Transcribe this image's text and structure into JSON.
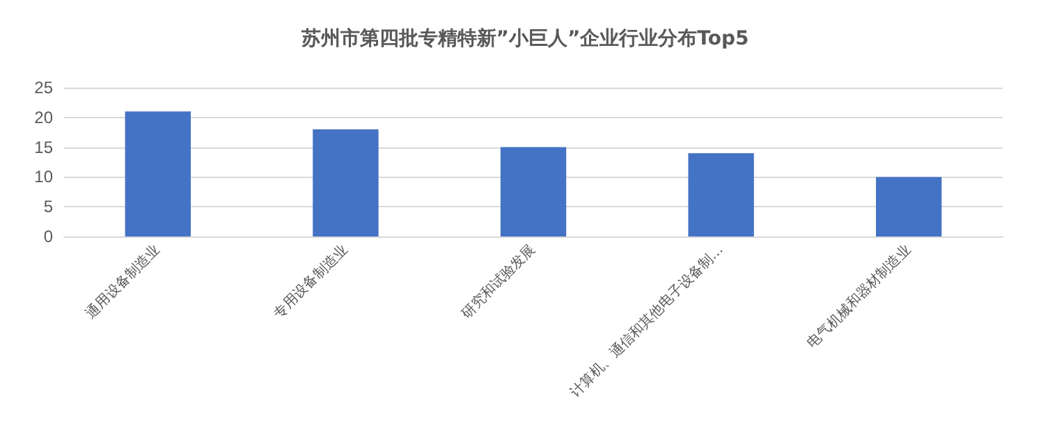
{
  "chart_data": {
    "type": "bar",
    "title": "苏州市第四批专精特新”小巨人”企业行业分布Top5",
    "categories": [
      "通用设备制造业",
      "专用设备制造业",
      "研究和试验发展",
      "计算机、通信和其他电子设备制…",
      "电气机械和器材制造业"
    ],
    "values": [
      21,
      18,
      15,
      14,
      10
    ],
    "color": "#4472c4",
    "ylim": [
      0,
      25
    ],
    "yticks": [
      0,
      5,
      10,
      15,
      20,
      25
    ],
    "grid": "y"
  }
}
